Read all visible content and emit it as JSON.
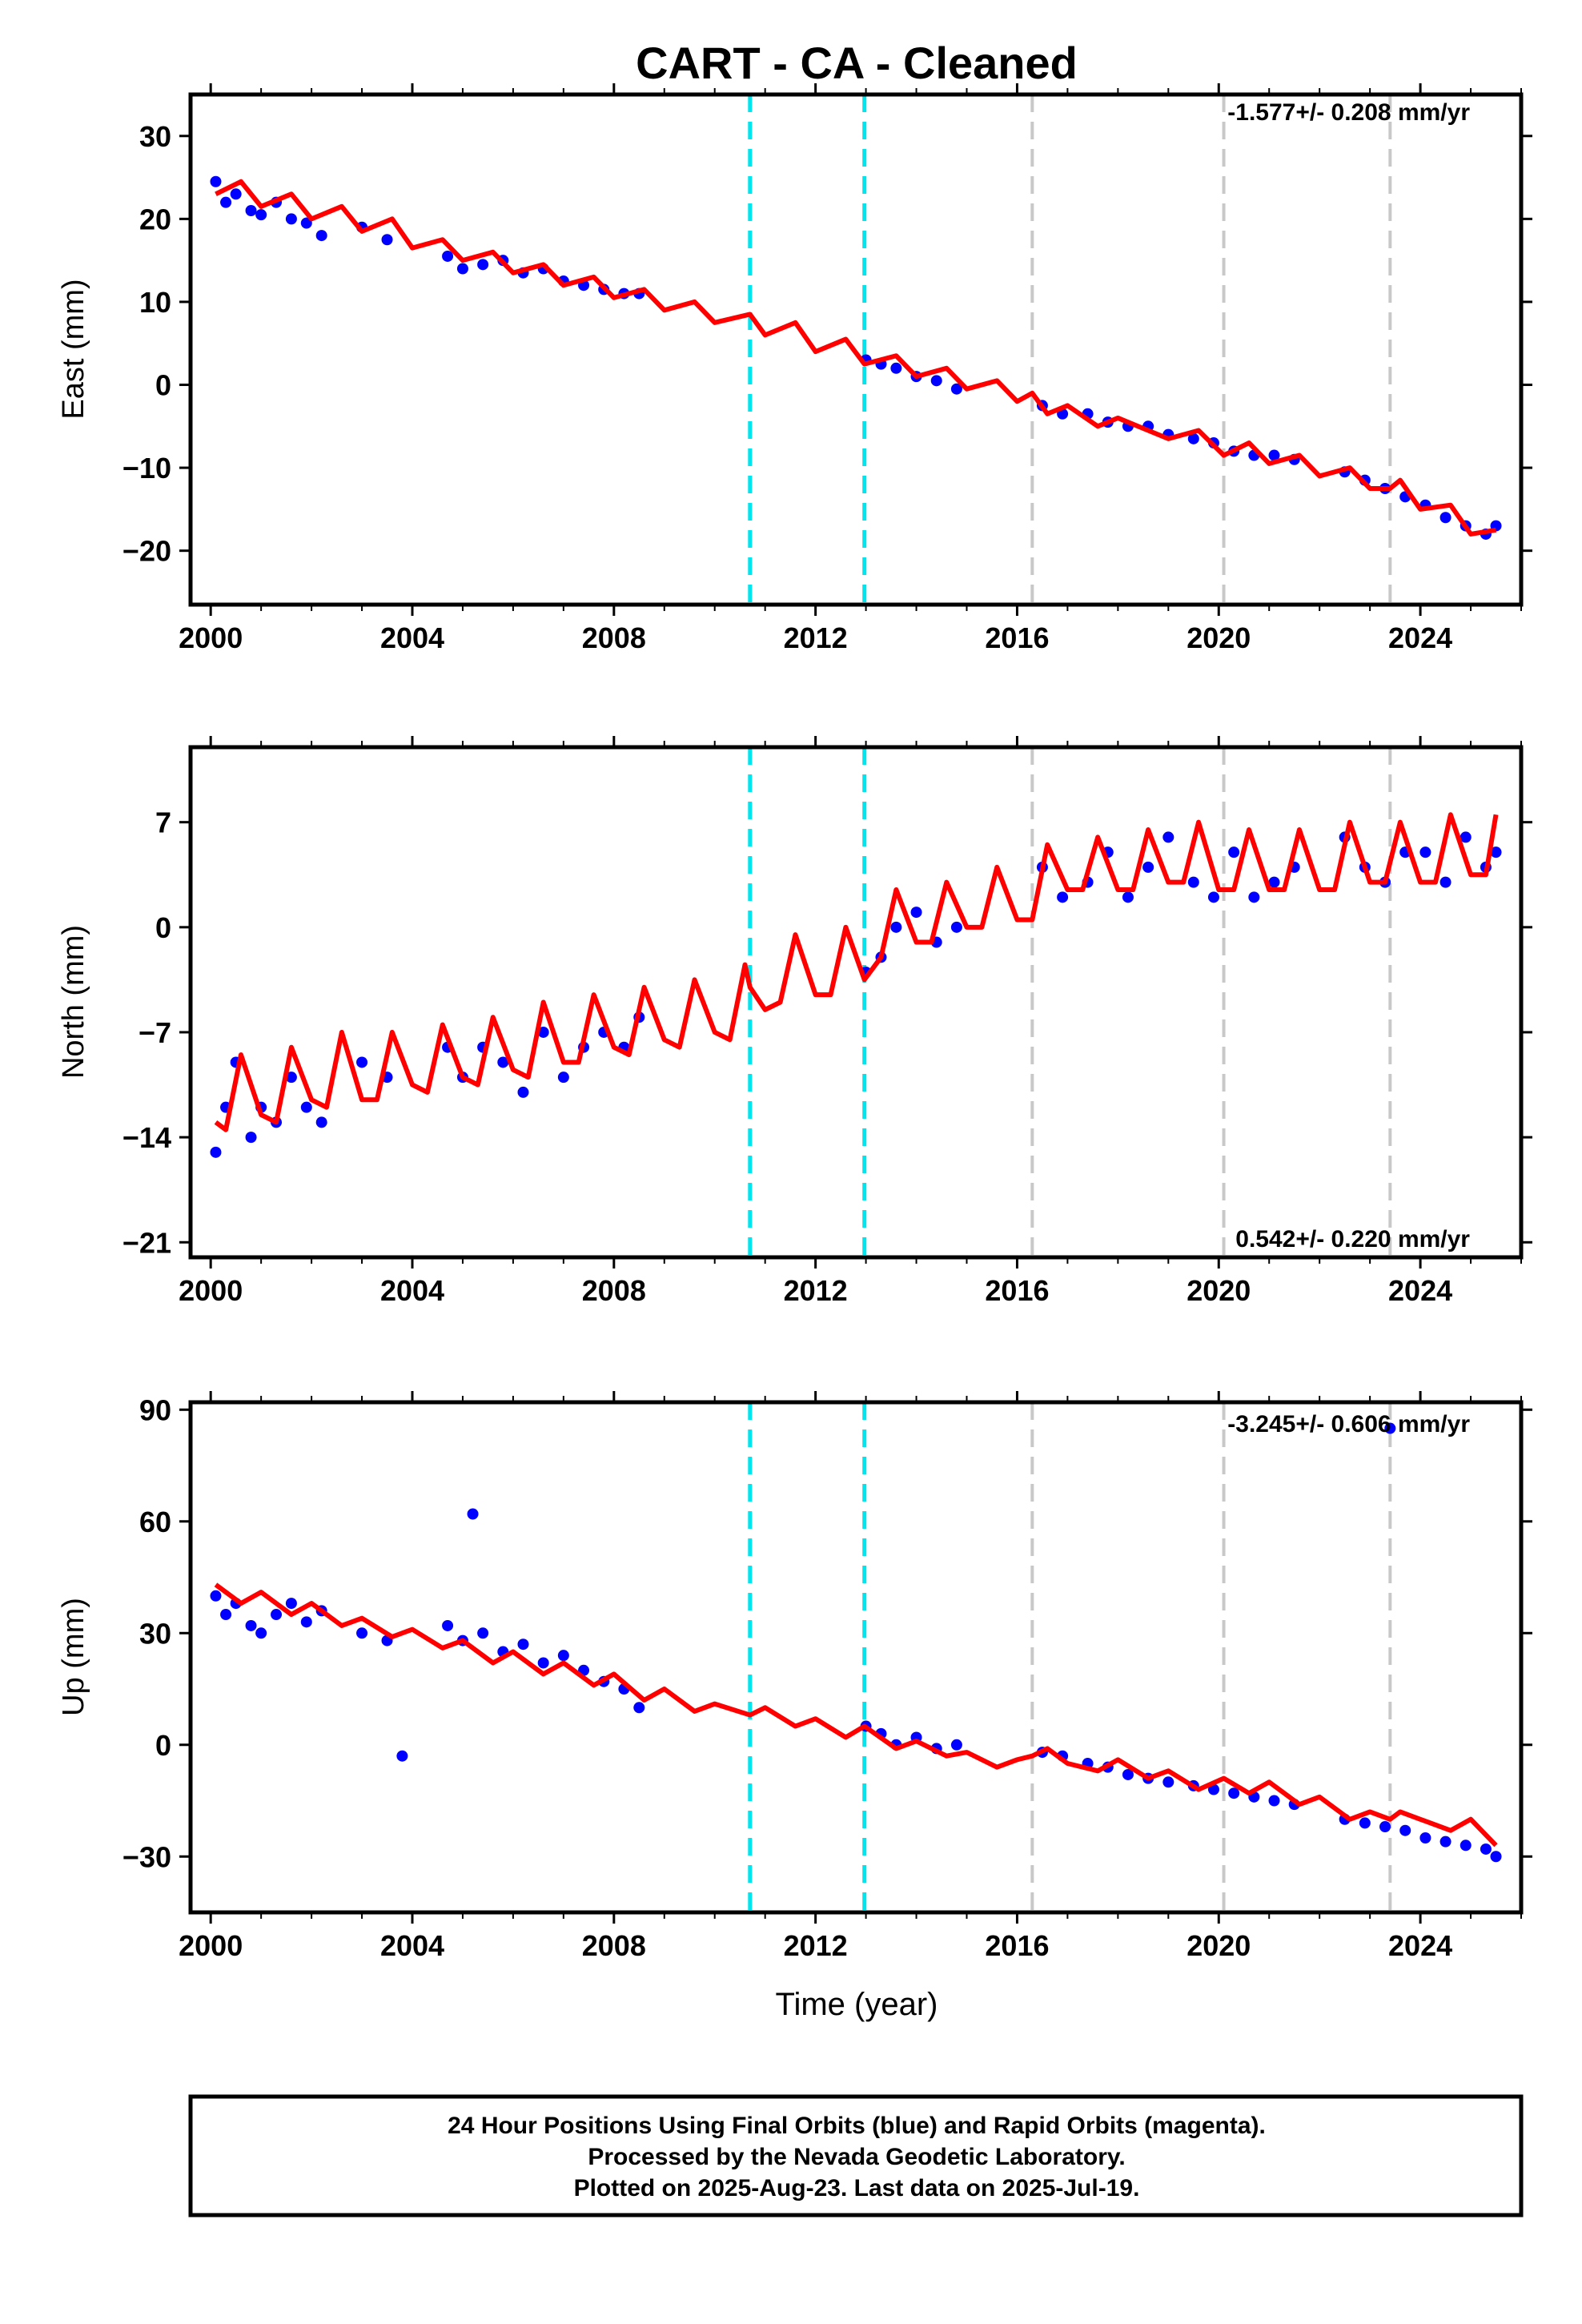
{
  "title": "CART  - CA - Cleaned",
  "xlabel": "Time (year)",
  "footer": [
    "24 Hour Positions Using Final Orbits (blue) and Rapid Orbits (magenta).",
    "Processed by the Nevada Geodetic Laboratory.",
    "Plotted on 2025-Aug-23. Last data on 2025-Jul-19."
  ],
  "colors": {
    "points": "#0000ff",
    "model": "#ff0000",
    "equipment_change": "#00e5ee",
    "other_event": "#c8c8c8",
    "frame": "#000000"
  },
  "event_lines": {
    "cyan_years": [
      2010.7,
      2012.97
    ],
    "gray_years": [
      2016.3,
      2020.1,
      2023.4
    ]
  },
  "chart_data": [
    {
      "type": "scatter",
      "component": "east",
      "ylabel": "East (mm)",
      "rate": "-1.577+/- 0.208 mm/yr",
      "xlim": [
        1999.6,
        2026.0
      ],
      "ylim": [
        -26.5,
        35
      ],
      "xticks": [
        "2000",
        "2004",
        "2008",
        "2012",
        "2016",
        "2020",
        "2024"
      ],
      "yticks": [
        "30",
        "20",
        "10",
        "0",
        "−10",
        "−20"
      ],
      "series": [
        {
          "name": "daily positions",
          "x": [
            2000.1,
            2000.3,
            2000.5,
            2000.8,
            2001.0,
            2001.3,
            2001.6,
            2001.9,
            2002.2,
            2003.0,
            2003.5,
            2004.7,
            2005.0,
            2005.4,
            2005.8,
            2006.2,
            2006.6,
            2007.0,
            2007.4,
            2007.8,
            2008.2,
            2008.5,
            2013.0,
            2013.3,
            2013.6,
            2014.0,
            2014.4,
            2014.8,
            2016.5,
            2016.9,
            2017.4,
            2017.8,
            2018.2,
            2018.6,
            2019.0,
            2019.5,
            2019.9,
            2020.3,
            2020.7,
            2021.1,
            2021.5,
            2022.5,
            2022.9,
            2023.3,
            2023.7,
            2024.1,
            2024.5,
            2024.9,
            2025.3,
            2025.5
          ],
          "y": [
            24.5,
            22,
            23,
            21,
            20.5,
            22,
            20,
            19.5,
            18,
            19,
            17.5,
            15.5,
            14,
            14.5,
            15,
            13.5,
            14,
            12.5,
            12,
            11.5,
            11,
            11,
            3,
            2.5,
            2,
            1,
            0.5,
            -0.5,
            -2.5,
            -3.5,
            -3.5,
            -4.5,
            -5,
            -5,
            -6,
            -6.5,
            -7,
            -8,
            -8.5,
            -8.5,
            -9,
            -10.5,
            -11.5,
            -12.5,
            -13.5,
            -14.5,
            -16,
            -17,
            -18,
            -17
          ]
        },
        {
          "name": "model",
          "x": [
            2000.1,
            2000.6,
            2001.0,
            2001.6,
            2002.0,
            2002.6,
            2003.0,
            2003.6,
            2004.0,
            2004.6,
            2005.0,
            2005.6,
            2006.0,
            2006.6,
            2007.0,
            2007.6,
            2008.0,
            2008.6,
            2009.0,
            2009.6,
            2010.0,
            2010.7,
            2011.0,
            2011.6,
            2012.0,
            2012.6,
            2012.97,
            2013.6,
            2014.0,
            2014.6,
            2015.0,
            2015.6,
            2016.0,
            2016.3,
            2016.6,
            2017.0,
            2017.6,
            2018.0,
            2018.6,
            2019.0,
            2019.6,
            2020.1,
            2020.6,
            2021.0,
            2021.6,
            2022.0,
            2022.6,
            2023.0,
            2023.4,
            2023.6,
            2024.0,
            2024.6,
            2025.0,
            2025.5
          ],
          "y": [
            23,
            24.5,
            21.5,
            23,
            20,
            21.5,
            18.5,
            20,
            16.5,
            17.5,
            15,
            16,
            13.5,
            14.5,
            12,
            13,
            10.5,
            11.5,
            9,
            10,
            7.5,
            8.5,
            6,
            7.5,
            4,
            5.5,
            2.5,
            3.5,
            1,
            2,
            -0.5,
            0.5,
            -2,
            -1,
            -3.5,
            -2.5,
            -5,
            -4,
            -5.5,
            -6.5,
            -5.5,
            -8.5,
            -7,
            -9.5,
            -8.5,
            -11,
            -10,
            -12.5,
            -12.5,
            -11.5,
            -15,
            -14.5,
            -18,
            -17.5
          ]
        }
      ]
    },
    {
      "type": "scatter",
      "component": "north",
      "ylabel": "North (mm)",
      "rate": "0.542+/- 0.220 mm/yr",
      "xlim": [
        1999.6,
        2026.0
      ],
      "ylim": [
        -22,
        12
      ],
      "xticks": [
        "2000",
        "2004",
        "2008",
        "2012",
        "2016",
        "2020",
        "2024"
      ],
      "yticks": [
        "7",
        "0",
        "−7",
        "−14",
        "−21"
      ],
      "series": [
        {
          "name": "daily positions",
          "x": [
            2000.1,
            2000.3,
            2000.5,
            2000.8,
            2001.0,
            2001.3,
            2001.6,
            2001.9,
            2002.2,
            2003.0,
            2003.5,
            2004.7,
            2005.0,
            2005.4,
            2005.8,
            2006.2,
            2006.6,
            2007.0,
            2007.4,
            2007.8,
            2008.2,
            2008.5,
            2013.0,
            2013.3,
            2013.6,
            2014.0,
            2014.4,
            2014.8,
            2016.5,
            2016.9,
            2017.4,
            2017.8,
            2018.2,
            2018.6,
            2019.0,
            2019.5,
            2019.9,
            2020.3,
            2020.7,
            2021.1,
            2021.5,
            2022.5,
            2022.9,
            2023.3,
            2023.7,
            2024.1,
            2024.5,
            2024.9,
            2025.3,
            2025.5
          ],
          "y": [
            -15,
            -12,
            -9,
            -14,
            -12,
            -13,
            -10,
            -12,
            -13,
            -9,
            -10,
            -8,
            -10,
            -8,
            -9,
            -11,
            -7,
            -10,
            -8,
            -7,
            -8,
            -6,
            -3,
            -2,
            0,
            1,
            -1,
            0,
            4,
            2,
            3,
            5,
            2,
            4,
            6,
            3,
            2,
            5,
            2,
            3,
            4,
            6,
            4,
            3,
            5,
            5,
            3,
            6,
            4,
            5
          ]
        },
        {
          "name": "model",
          "x": [
            2000.1,
            2000.3,
            2000.6,
            2001.0,
            2001.3,
            2001.6,
            2002.0,
            2002.3,
            2002.6,
            2003.0,
            2003.3,
            2003.6,
            2004.0,
            2004.3,
            2004.6,
            2005.0,
            2005.3,
            2005.6,
            2006.0,
            2006.3,
            2006.6,
            2007.0,
            2007.3,
            2007.6,
            2008.0,
            2008.3,
            2008.6,
            2009.0,
            2009.3,
            2009.6,
            2010.0,
            2010.3,
            2010.6,
            2010.7,
            2011.0,
            2011.3,
            2011.6,
            2012.0,
            2012.3,
            2012.6,
            2012.97,
            2013.3,
            2013.6,
            2014.0,
            2014.3,
            2014.6,
            2015.0,
            2015.3,
            2015.6,
            2016.0,
            2016.3,
            2016.6,
            2017.0,
            2017.3,
            2017.6,
            2018.0,
            2018.3,
            2018.6,
            2019.0,
            2019.3,
            2019.6,
            2020.0,
            2020.3,
            2020.6,
            2021.0,
            2021.3,
            2021.6,
            2022.0,
            2022.3,
            2022.6,
            2023.0,
            2023.3,
            2023.6,
            2024.0,
            2024.3,
            2024.6,
            2025.0,
            2025.3,
            2025.5
          ],
          "y": [
            -13,
            -13.5,
            -8.5,
            -12.5,
            -13,
            -8,
            -11.5,
            -12,
            -7,
            -11.5,
            -11.5,
            -7,
            -10.5,
            -11,
            -6.5,
            -10,
            -10.5,
            -6,
            -9.5,
            -10,
            -5,
            -9,
            -9,
            -4.5,
            -8,
            -8.5,
            -4,
            -7.5,
            -8,
            -3.5,
            -7,
            -7.5,
            -2.5,
            -4,
            -5.5,
            -5,
            -0.5,
            -4.5,
            -4.5,
            0,
            -3.5,
            -2,
            2.5,
            -1,
            -1,
            3,
            0,
            0,
            4,
            0.5,
            0.5,
            5.5,
            2.5,
            2.5,
            6,
            2.5,
            2.5,
            6.5,
            3,
            3,
            7,
            2.5,
            2.5,
            6.5,
            2.5,
            2.5,
            6.5,
            2.5,
            2.5,
            7,
            3,
            3,
            7,
            3,
            3,
            7.5,
            3.5,
            3.5,
            7.5
          ]
        }
      ]
    },
    {
      "type": "scatter",
      "component": "up",
      "ylabel": "Up (mm)",
      "rate": "-3.245+/- 0.606 mm/yr",
      "xlim": [
        1999.6,
        2026.0
      ],
      "ylim": [
        -45,
        92
      ],
      "xticks": [
        "2000",
        "2004",
        "2008",
        "2012",
        "2016",
        "2020",
        "2024"
      ],
      "yticks": [
        "90",
        "60",
        "30",
        "0",
        "−30"
      ],
      "series": [
        {
          "name": "daily positions",
          "x": [
            2000.1,
            2000.3,
            2000.5,
            2000.8,
            2001.0,
            2001.3,
            2001.6,
            2001.9,
            2002.2,
            2003.0,
            2003.5,
            2003.8,
            2004.7,
            2005.0,
            2005.2,
            2005.4,
            2005.8,
            2006.2,
            2006.6,
            2007.0,
            2007.4,
            2007.8,
            2008.2,
            2008.5,
            2013.0,
            2013.3,
            2013.6,
            2014.0,
            2014.4,
            2014.8,
            2016.5,
            2016.9,
            2017.4,
            2017.8,
            2018.2,
            2018.6,
            2019.0,
            2019.5,
            2019.9,
            2020.3,
            2020.7,
            2021.1,
            2021.5,
            2022.5,
            2022.9,
            2023.3,
            2023.4,
            2023.7,
            2024.1,
            2024.5,
            2024.9,
            2025.3,
            2025.5
          ],
          "y": [
            40,
            35,
            38,
            32,
            30,
            35,
            38,
            33,
            36,
            30,
            28,
            -3,
            32,
            28,
            62,
            30,
            25,
            27,
            22,
            24,
            20,
            17,
            15,
            10,
            5,
            3,
            0,
            2,
            -1,
            0,
            -2,
            -3,
            -5,
            -6,
            -8,
            -9,
            -10,
            -11,
            -12,
            -13,
            -14,
            -15,
            -16,
            -20,
            -21,
            -22,
            85,
            -23,
            -25,
            -26,
            -27,
            -28,
            -30
          ]
        },
        {
          "name": "model",
          "x": [
            2000.1,
            2000.6,
            2001.0,
            2001.6,
            2002.0,
            2002.6,
            2003.0,
            2003.6,
            2004.0,
            2004.6,
            2005.0,
            2005.6,
            2006.0,
            2006.6,
            2007.0,
            2007.6,
            2008.0,
            2008.6,
            2009.0,
            2009.6,
            2010.0,
            2010.7,
            2011.0,
            2011.6,
            2012.0,
            2012.6,
            2012.97,
            2013.6,
            2014.0,
            2014.6,
            2015.0,
            2015.6,
            2016.0,
            2016.3,
            2016.6,
            2017.0,
            2017.6,
            2018.0,
            2018.6,
            2019.0,
            2019.6,
            2020.1,
            2020.6,
            2021.0,
            2021.6,
            2022.0,
            2022.6,
            2023.0,
            2023.4,
            2023.6,
            2024.0,
            2024.6,
            2025.0,
            2025.5
          ],
          "y": [
            43,
            38,
            41,
            35,
            38,
            32,
            34,
            29,
            31,
            26,
            28,
            22,
            25,
            19,
            22,
            16,
            19,
            12,
            15,
            9,
            11,
            8,
            10,
            5,
            7,
            2,
            5,
            -1,
            1,
            -3,
            -2,
            -6,
            -4,
            -3,
            -1,
            -5,
            -7,
            -4,
            -9,
            -7,
            -12,
            -9,
            -13,
            -10,
            -16,
            -14,
            -20,
            -18,
            -20,
            -18,
            -20,
            -23,
            -20,
            -27
          ]
        }
      ]
    }
  ]
}
